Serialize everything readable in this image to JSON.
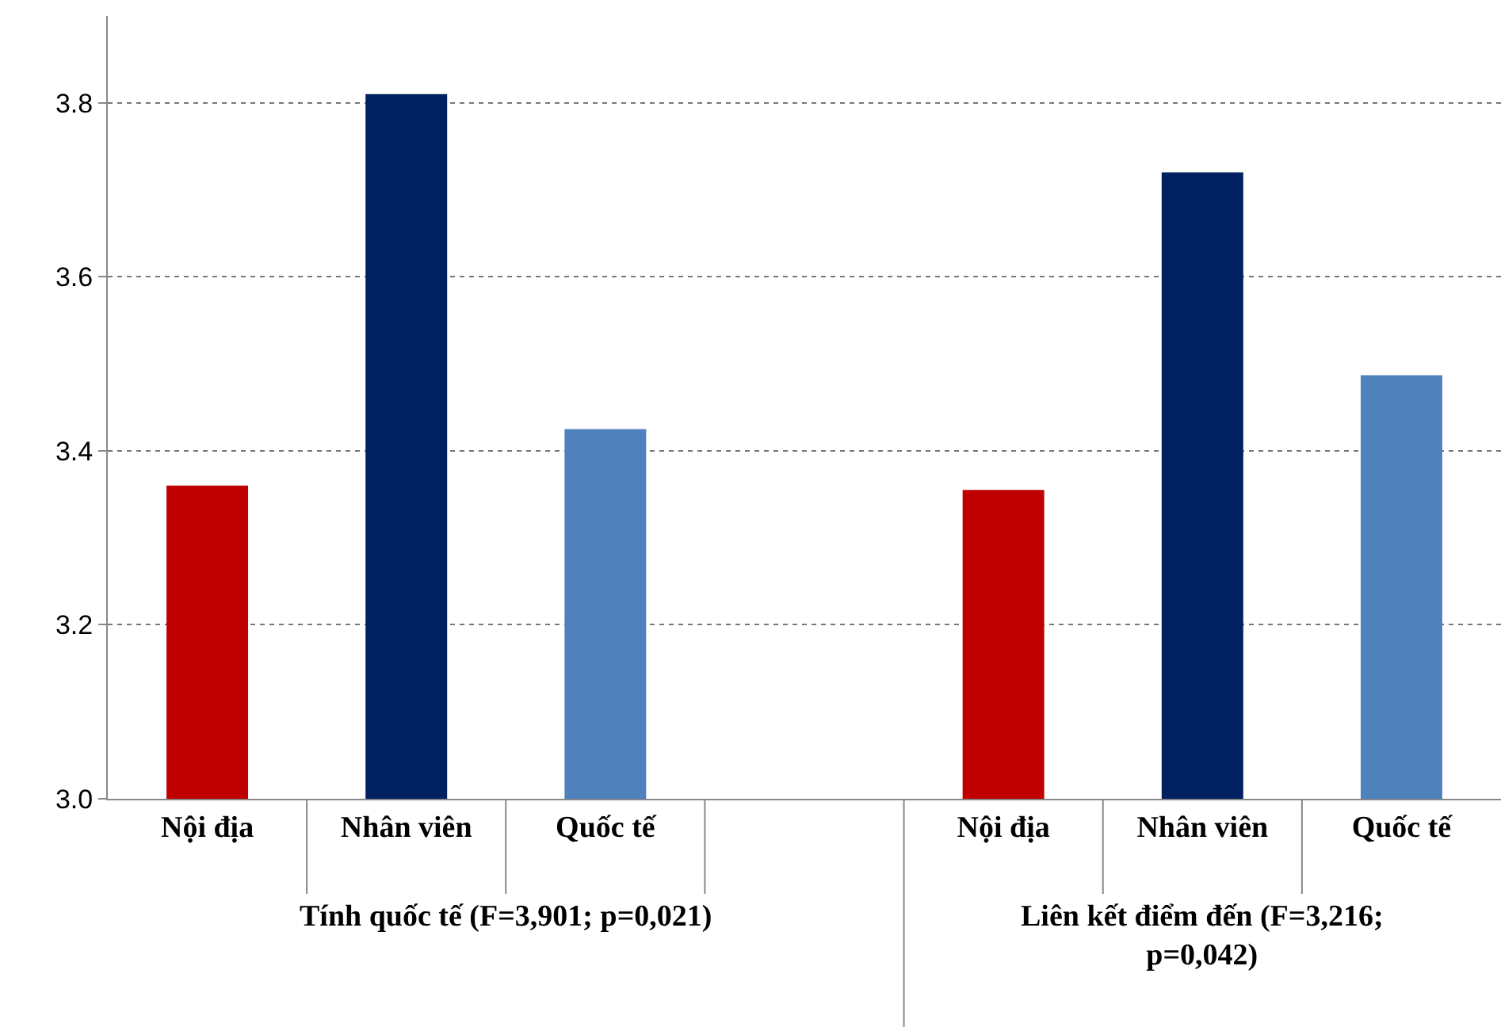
{
  "chart_data": {
    "type": "bar",
    "categories": [
      "Nội địa",
      "Nhân viên",
      "Quốc tế",
      null,
      "Nội địa",
      "Nhân viên",
      "Quốc tế"
    ],
    "values": [
      3.36,
      3.81,
      3.425,
      null,
      3.355,
      3.72,
      3.487
    ],
    "colors": [
      "#c00000",
      "#002060",
      "#4f81bd",
      "#ffffff",
      "#c00000",
      "#002060",
      "#4f81bd"
    ],
    "ylim": [
      3.0,
      3.9
    ],
    "yticks": [
      {
        "value": 3.0,
        "label": "3.0"
      },
      {
        "value": 3.2,
        "label": "3.2"
      },
      {
        "value": 3.4,
        "label": "3.4"
      },
      {
        "value": 3.6,
        "label": "3.6"
      },
      {
        "value": 3.8,
        "label": "3.8"
      }
    ],
    "grid": "y",
    "annotations": [
      "Tính quốc tế (F=3,901; p=0,021)",
      "Liên kết điểm đến (F=3,216;\np=0,042)"
    ]
  }
}
